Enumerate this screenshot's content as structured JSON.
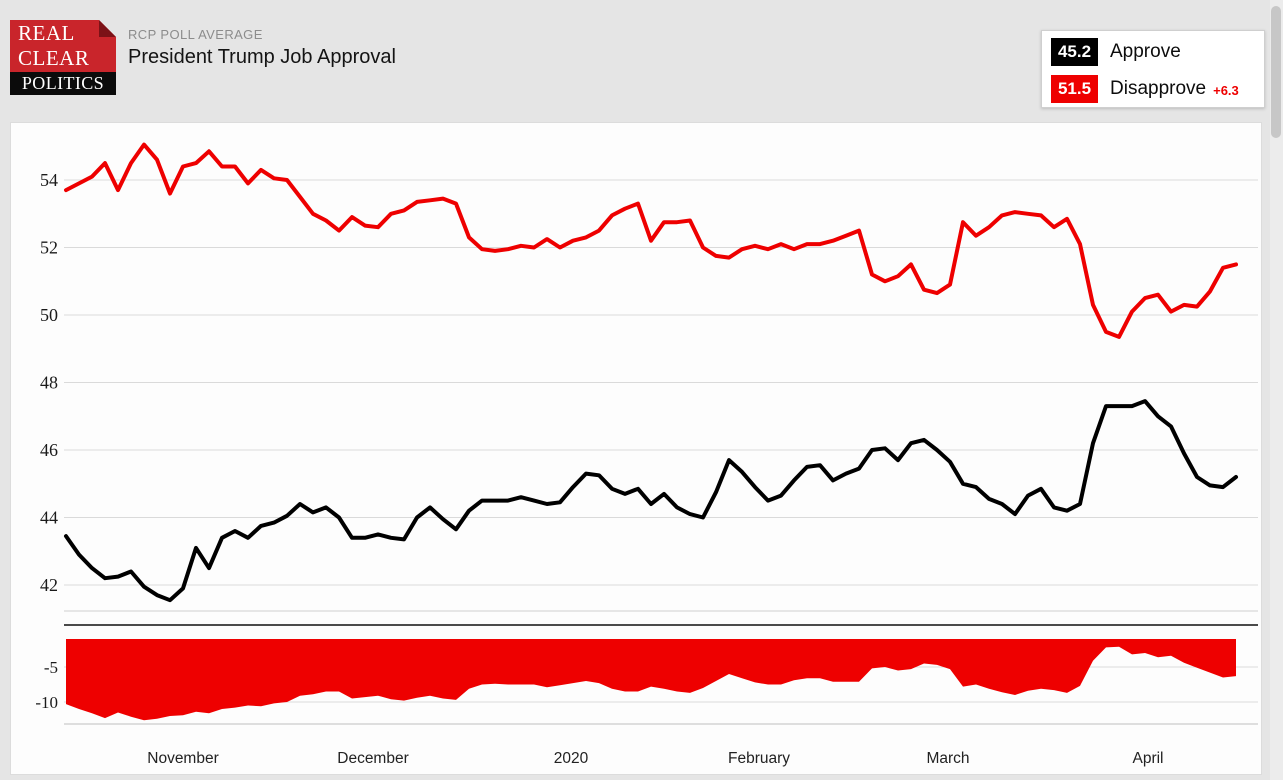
{
  "header": {
    "logo": {
      "line1": "REAL",
      "line2": "CLEAR",
      "line3": "POLITICS",
      "red": "#c9252b",
      "fold": "#7c1217"
    },
    "kicker": "RCP POLL AVERAGE",
    "title": "President Trump Job Approval"
  },
  "legend": {
    "items": [
      {
        "value": "45.2",
        "label": "Approve",
        "color": "#000000",
        "delta": ""
      },
      {
        "value": "51.5",
        "label": "Disapprove",
        "color": "#ee0000",
        "delta": "+6.3"
      }
    ]
  },
  "chart_data": {
    "type": "line",
    "title": "President Trump Job Approval",
    "x_axis": {
      "labels": [
        {
          "text": "November",
          "f": 0.1
        },
        {
          "text": "December",
          "f": 0.262
        },
        {
          "text": "2020",
          "f": 0.432
        },
        {
          "text": "February",
          "f": 0.592
        },
        {
          "text": "March",
          "f": 0.754
        },
        {
          "text": "April",
          "f": 0.925
        }
      ]
    },
    "y_axis_main": {
      "ticks": [
        54,
        52,
        50,
        48,
        46,
        44,
        42
      ],
      "range": [
        41.2,
        55.6
      ],
      "grid": true
    },
    "y_axis_spread": {
      "ticks": [
        -5,
        -10
      ],
      "range": [
        -1.0,
        -13.1
      ],
      "grid": true
    },
    "series": [
      {
        "name": "Approve",
        "color": "#000000",
        "type": "line",
        "values": [
          43.45,
          42.9,
          42.5,
          42.2,
          42.25,
          42.4,
          41.95,
          41.7,
          41.55,
          41.9,
          43.1,
          42.5,
          43.4,
          43.6,
          43.4,
          43.75,
          43.85,
          44.05,
          44.4,
          44.15,
          44.3,
          44.0,
          43.4,
          43.4,
          43.5,
          43.4,
          43.35,
          44.0,
          44.3,
          43.95,
          43.65,
          44.2,
          44.5,
          44.5,
          44.5,
          44.6,
          44.5,
          44.4,
          44.45,
          44.9,
          45.3,
          45.25,
          44.85,
          44.7,
          44.85,
          44.4,
          44.7,
          44.3,
          44.1,
          44.0,
          44.75,
          45.7,
          45.35,
          44.9,
          44.5,
          44.65,
          45.1,
          45.5,
          45.55,
          45.1,
          45.3,
          45.45,
          46.0,
          46.05,
          45.7,
          46.2,
          46.3,
          46.0,
          45.65,
          45.0,
          44.9,
          44.55,
          44.4,
          44.1,
          44.65,
          44.85,
          44.3,
          44.2,
          44.4,
          46.2,
          47.3,
          47.3,
          47.3,
          47.45,
          47.0,
          46.7,
          45.9,
          45.2,
          44.95,
          44.9,
          45.2
        ]
      },
      {
        "name": "Disapprove",
        "color": "#ee0000",
        "type": "line",
        "values": [
          53.7,
          53.9,
          54.1,
          54.5,
          53.7,
          54.5,
          55.05,
          54.6,
          53.6,
          54.4,
          54.5,
          54.85,
          54.4,
          54.4,
          53.9,
          54.3,
          54.05,
          54.0,
          53.5,
          53.0,
          52.8,
          52.5,
          52.9,
          52.65,
          52.6,
          53.0,
          53.1,
          53.35,
          53.4,
          53.45,
          53.3,
          52.3,
          51.95,
          51.9,
          51.95,
          52.05,
          52.0,
          52.25,
          52.0,
          52.2,
          52.3,
          52.5,
          52.95,
          53.15,
          53.3,
          52.2,
          52.75,
          52.75,
          52.8,
          52.0,
          51.75,
          51.7,
          51.95,
          52.05,
          51.95,
          52.1,
          51.95,
          52.1,
          52.1,
          52.2,
          52.35,
          52.5,
          51.2,
          51.0,
          51.15,
          51.5,
          50.75,
          50.65,
          50.9,
          52.75,
          52.35,
          52.6,
          52.95,
          53.05,
          53.0,
          52.95,
          52.6,
          52.85,
          52.1,
          50.3,
          49.5,
          49.35,
          50.1,
          50.5,
          50.6,
          50.1,
          50.3,
          50.25,
          50.7,
          51.4,
          51.5
        ]
      },
      {
        "name": "Spread",
        "color": "#ee0000",
        "type": "area",
        "values": [
          -10.3,
          -11.0,
          -11.6,
          -12.3,
          -11.5,
          -12.1,
          -12.6,
          -12.4,
          -12.0,
          -11.9,
          -11.4,
          -11.6,
          -11.0,
          -10.8,
          -10.5,
          -10.6,
          -10.2,
          -10.0,
          -9.1,
          -8.9,
          -8.5,
          -8.5,
          -9.5,
          -9.3,
          -9.1,
          -9.6,
          -9.8,
          -9.4,
          -9.1,
          -9.5,
          -9.7,
          -8.1,
          -7.5,
          -7.4,
          -7.5,
          -7.5,
          -7.5,
          -7.9,
          -7.6,
          -7.3,
          -7.0,
          -7.3,
          -8.1,
          -8.5,
          -8.5,
          -7.8,
          -8.1,
          -8.5,
          -8.7,
          -8.0,
          -7.0,
          -6.0,
          -6.6,
          -7.2,
          -7.5,
          -7.5,
          -6.9,
          -6.6,
          -6.6,
          -7.1,
          -7.1,
          -7.1,
          -5.2,
          -5.0,
          -5.5,
          -5.3,
          -4.5,
          -4.7,
          -5.3,
          -7.8,
          -7.5,
          -8.1,
          -8.6,
          -9.0,
          -8.4,
          -8.1,
          -8.3,
          -8.7,
          -7.7,
          -4.1,
          -2.2,
          -2.1,
          -3.2,
          -3.0,
          -3.6,
          -3.4,
          -4.4,
          -5.1,
          -5.8,
          -6.5,
          -6.3
        ]
      }
    ],
    "colors": {
      "grid": "#dadada",
      "separator": "#4a4a4a",
      "plot_bottom": "#cfcfcf",
      "spread_bottom": "#c0c0c0",
      "tick_text": "#1a1a1a"
    }
  }
}
